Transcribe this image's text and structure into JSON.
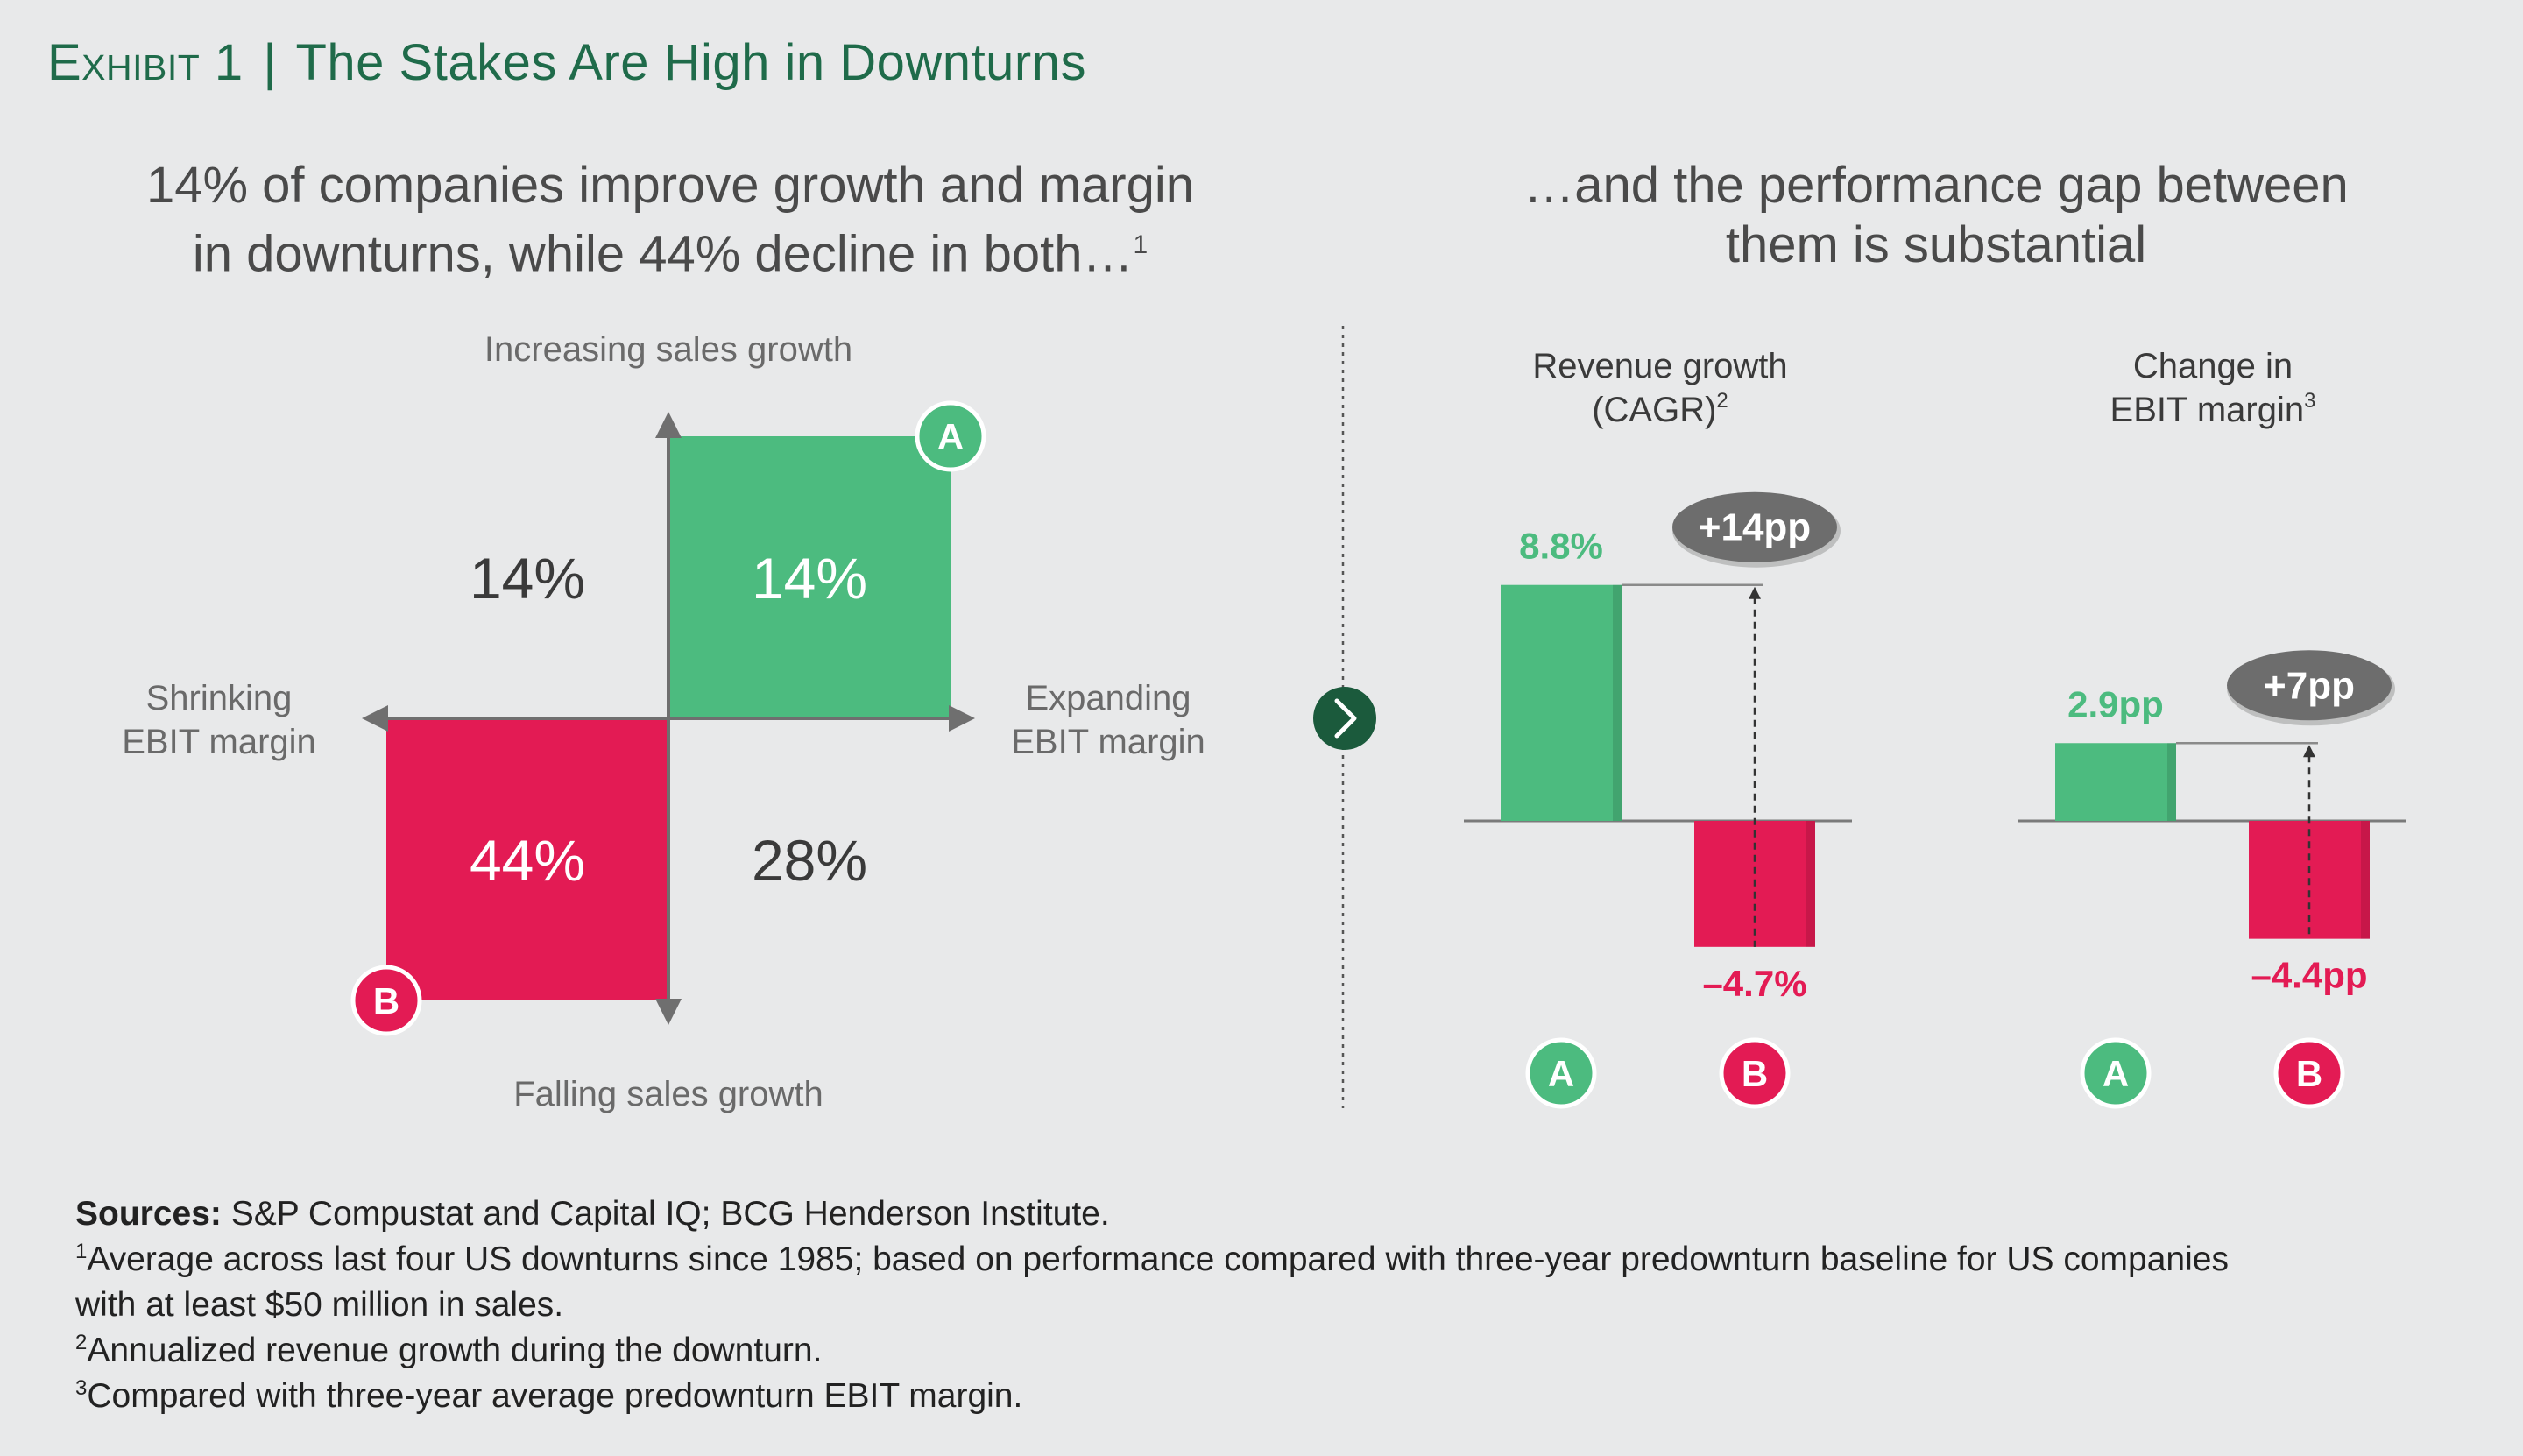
{
  "title": {
    "exhibit": "Exhibit 1",
    "separator": "|",
    "text": "The Stakes Are High in Downturns"
  },
  "left_heading": {
    "line1": "14% of companies improve growth and margin",
    "line2": "in downturns, while 44% decline in both…",
    "sup": "1"
  },
  "right_heading": {
    "line1": "…and the performance gap between",
    "line2": "them is substantial"
  },
  "colors": {
    "green": "#4cbb7f",
    "red": "#e31b54",
    "dark_green": "#1b5a3c",
    "pill": "#6d6d6d"
  },
  "chart_data": [
    {
      "type": "table",
      "description_axes": {
        "top": "Increasing sales growth",
        "bottom": "Falling sales growth",
        "left": [
          "Shrinking",
          "EBIT margin"
        ],
        "right": [
          "Expanding",
          "EBIT margin"
        ]
      },
      "quadrants": [
        {
          "position": "top-left",
          "value": "14%"
        },
        {
          "position": "top-right",
          "value": "14%",
          "marker": "A"
        },
        {
          "position": "bottom-left",
          "value": "44%",
          "marker": "B"
        },
        {
          "position": "bottom-right",
          "value": "28%"
        }
      ]
    },
    {
      "type": "bar",
      "title_lines": [
        "Revenue growth",
        "(CAGR)"
      ],
      "title_sup": "2",
      "categories": [
        "A",
        "B"
      ],
      "values": [
        8.8,
        -4.7
      ],
      "labels": [
        "8.8%",
        "–4.7%"
      ],
      "gap_label": "+14pp",
      "ylim": [
        -5.5,
        10
      ]
    },
    {
      "type": "bar",
      "title_lines": [
        "Change in",
        "EBIT margin"
      ],
      "title_sup": "3",
      "categories": [
        "A",
        "B"
      ],
      "values": [
        2.9,
        -4.4
      ],
      "labels": [
        "2.9pp",
        "–4.4pp"
      ],
      "gap_label": "+7pp",
      "ylim": [
        -5.5,
        10
      ]
    }
  ],
  "footer": {
    "sources_label": "Sources:",
    "sources_text": "S&P Compustat and Capital IQ; BCG Henderson Institute.",
    "notes": [
      {
        "sup": "1",
        "text": "Average across last four US downturns since 1985; based on performance compared with three-year predownturn baseline for US companies"
      },
      {
        "sup": "",
        "text": "with at least $50 million in sales."
      },
      {
        "sup": "2",
        "text": "Annualized revenue growth during the downturn."
      },
      {
        "sup": "3",
        "text": "Compared with three-year average predownturn EBIT margin."
      }
    ]
  }
}
